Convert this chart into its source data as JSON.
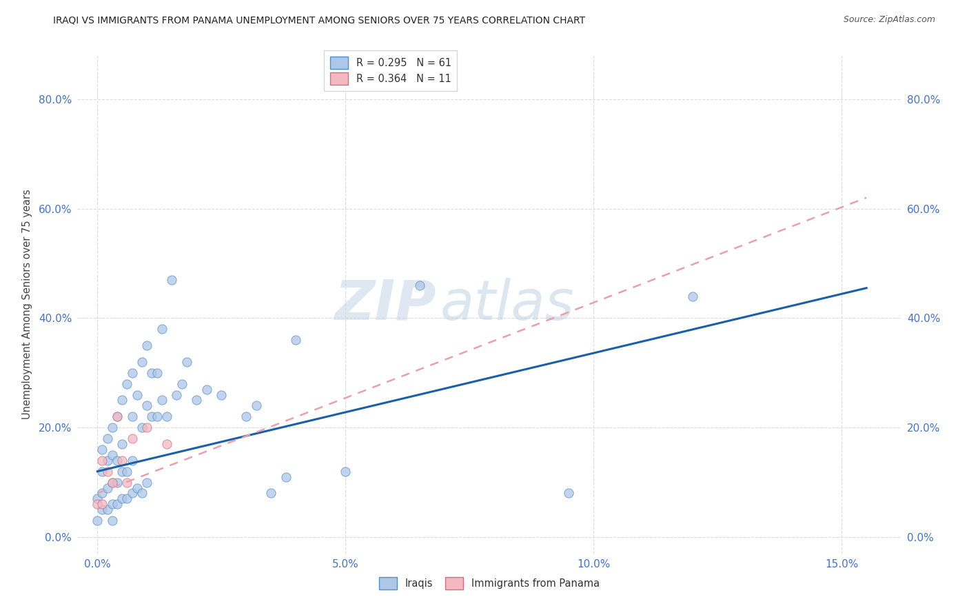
{
  "title": "IRAQI VS IMMIGRANTS FROM PANAMA UNEMPLOYMENT AMONG SENIORS OVER 75 YEARS CORRELATION CHART",
  "source": "Source: ZipAtlas.com",
  "xlabel_ticks": [
    "0.0%",
    "5.0%",
    "10.0%",
    "15.0%"
  ],
  "ylabel_ticks": [
    "0.0%",
    "20.0%",
    "40.0%",
    "60.0%",
    "80.0%"
  ],
  "xlabel_vals": [
    0.0,
    0.05,
    0.1,
    0.15
  ],
  "ylabel_vals": [
    0.0,
    0.2,
    0.4,
    0.6,
    0.8
  ],
  "xlim": [
    -0.004,
    0.162
  ],
  "ylim": [
    -0.03,
    0.88
  ],
  "ylabel": "Unemployment Among Seniors over 75 years",
  "iraqis_x": [
    0.0,
    0.0,
    0.001,
    0.001,
    0.001,
    0.001,
    0.002,
    0.002,
    0.002,
    0.002,
    0.003,
    0.003,
    0.003,
    0.003,
    0.003,
    0.004,
    0.004,
    0.004,
    0.004,
    0.005,
    0.005,
    0.005,
    0.005,
    0.006,
    0.006,
    0.006,
    0.007,
    0.007,
    0.007,
    0.007,
    0.008,
    0.008,
    0.009,
    0.009,
    0.009,
    0.01,
    0.01,
    0.01,
    0.011,
    0.011,
    0.012,
    0.012,
    0.013,
    0.013,
    0.014,
    0.015,
    0.016,
    0.017,
    0.018,
    0.02,
    0.022,
    0.025,
    0.03,
    0.032,
    0.035,
    0.038,
    0.04,
    0.05,
    0.065,
    0.095,
    0.12
  ],
  "iraqis_y": [
    0.03,
    0.07,
    0.05,
    0.08,
    0.12,
    0.16,
    0.05,
    0.09,
    0.14,
    0.18,
    0.03,
    0.06,
    0.1,
    0.15,
    0.2,
    0.06,
    0.1,
    0.14,
    0.22,
    0.07,
    0.12,
    0.17,
    0.25,
    0.07,
    0.12,
    0.28,
    0.08,
    0.14,
    0.22,
    0.3,
    0.09,
    0.26,
    0.08,
    0.2,
    0.32,
    0.1,
    0.24,
    0.35,
    0.22,
    0.3,
    0.22,
    0.3,
    0.25,
    0.38,
    0.22,
    0.47,
    0.26,
    0.28,
    0.32,
    0.25,
    0.27,
    0.26,
    0.22,
    0.24,
    0.08,
    0.11,
    0.36,
    0.12,
    0.46,
    0.08,
    0.44
  ],
  "panama_x": [
    0.0,
    0.001,
    0.001,
    0.002,
    0.003,
    0.004,
    0.005,
    0.006,
    0.007,
    0.01,
    0.014
  ],
  "panama_y": [
    0.06,
    0.06,
    0.14,
    0.12,
    0.1,
    0.22,
    0.14,
    0.1,
    0.18,
    0.2,
    0.17
  ],
  "iraq_line_x0": 0.0,
  "iraq_line_y0": 0.12,
  "iraq_line_x1": 0.155,
  "iraq_line_y1": 0.455,
  "panama_line_x0": 0.0,
  "panama_line_y0": 0.08,
  "panama_line_x1": 0.155,
  "panama_line_y1": 0.62,
  "iraq_line_color": "#1a5fa8",
  "panama_line_color": "#e8a0aa",
  "scatter_iraq_color": "#aec6e8",
  "scatter_iraq_edge": "#5090c8",
  "scatter_panama_color": "#f4b8c1",
  "scatter_panama_edge": "#cc7080",
  "background_color": "#ffffff",
  "grid_color": "#d5d5d5",
  "title_color": "#222222",
  "source_color": "#555555",
  "tick_color": "#4472c4",
  "ylabel_color": "#444444"
}
